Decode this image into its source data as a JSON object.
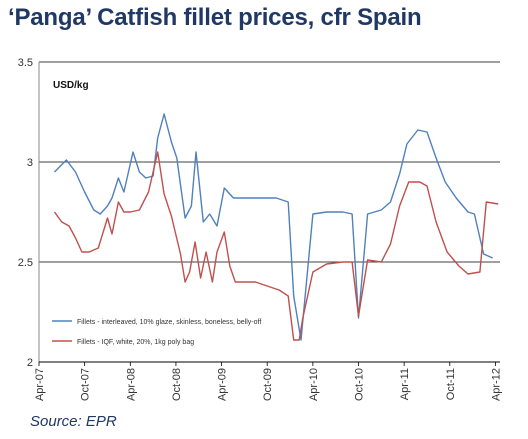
{
  "header": {
    "title": "‘Panga’ Catfish fillet prices, cfr Spain"
  },
  "footer": {
    "source": "Source: EPR"
  },
  "chart_data": {
    "type": "line",
    "title": "‘Panga’ Catfish fillet prices, cfr Spain",
    "ylabel": "USD/kg",
    "xlabel": "",
    "ylim": [
      2,
      3.5
    ],
    "xlim": [
      2007.25,
      2012.3
    ],
    "yticks": [
      2,
      2.5,
      3,
      3.5
    ],
    "ytick_labels": [
      "2",
      "2.5",
      "3",
      "3.5"
    ],
    "xticks": [
      2007.25,
      2007.75,
      2008.25,
      2008.75,
      2009.25,
      2009.75,
      2010.25,
      2010.75,
      2011.25,
      2011.75,
      2012.25
    ],
    "xtick_labels": [
      "Apr-07",
      "Oct-07",
      "Apr-08",
      "Oct-08",
      "Apr-09",
      "Oct-09",
      "Apr-10",
      "Oct-10",
      "Apr-11",
      "Oct-11",
      "Apr-12"
    ],
    "grid": "horizontal",
    "legend_position": "lower-left",
    "series": [
      {
        "name": "Fillets - interleaved, 10% glaze, skinless, boneless, belly-off",
        "color": "#4f81bd",
        "x": [
          2007.42,
          2007.55,
          2007.65,
          2007.75,
          2007.85,
          2007.92,
          2008.0,
          2008.05,
          2008.12,
          2008.18,
          2008.28,
          2008.35,
          2008.42,
          2008.5,
          2008.55,
          2008.62,
          2008.7,
          2008.76,
          2008.85,
          2008.92,
          2008.97,
          2009.05,
          2009.12,
          2009.2,
          2009.28,
          2009.38,
          2009.5,
          2009.62,
          2009.75,
          2009.85,
          2009.98,
          2010.04,
          2010.12,
          2010.25,
          2010.4,
          2010.58,
          2010.68,
          2010.75,
          2010.85,
          2011.0,
          2011.1,
          2011.2,
          2011.28,
          2011.4,
          2011.5,
          2011.6,
          2011.7,
          2011.82,
          2011.95,
          2012.02,
          2012.12,
          2012.22
        ],
        "values": [
          2.95,
          3.01,
          2.95,
          2.85,
          2.76,
          2.74,
          2.78,
          2.82,
          2.92,
          2.85,
          3.05,
          2.95,
          2.92,
          2.93,
          3.12,
          3.24,
          3.1,
          3.02,
          2.72,
          2.78,
          3.05,
          2.7,
          2.74,
          2.68,
          2.87,
          2.82,
          2.82,
          2.82,
          2.82,
          2.82,
          2.8,
          2.33,
          2.11,
          2.74,
          2.75,
          2.75,
          2.74,
          2.22,
          2.74,
          2.76,
          2.8,
          2.94,
          3.09,
          3.16,
          3.15,
          3.02,
          2.9,
          2.82,
          2.75,
          2.74,
          2.54,
          2.52
        ]
      },
      {
        "name": "Fillets - IQF, white, 20%, 1kg poly bag",
        "color": "#c0504d",
        "x": [
          2007.42,
          2007.5,
          2007.58,
          2007.65,
          2007.72,
          2007.8,
          2007.9,
          2008.0,
          2008.05,
          2008.12,
          2008.18,
          2008.25,
          2008.35,
          2008.45,
          2008.55,
          2008.62,
          2008.7,
          2008.8,
          2008.85,
          2008.9,
          2008.96,
          2009.02,
          2009.08,
          2009.15,
          2009.2,
          2009.28,
          2009.34,
          2009.4,
          2009.5,
          2009.62,
          2009.75,
          2009.88,
          2009.98,
          2010.04,
          2010.1,
          2010.14,
          2010.25,
          2010.4,
          2010.58,
          2010.68,
          2010.75,
          2010.85,
          2011.0,
          2011.1,
          2011.2,
          2011.3,
          2011.42,
          2011.5,
          2011.6,
          2011.72,
          2011.85,
          2011.95,
          2012.08,
          2012.15,
          2012.28
        ],
        "values": [
          2.75,
          2.7,
          2.68,
          2.62,
          2.55,
          2.55,
          2.57,
          2.72,
          2.64,
          2.8,
          2.75,
          2.75,
          2.76,
          2.85,
          3.05,
          2.84,
          2.73,
          2.54,
          2.4,
          2.45,
          2.6,
          2.42,
          2.55,
          2.4,
          2.55,
          2.65,
          2.48,
          2.4,
          2.4,
          2.4,
          2.38,
          2.36,
          2.33,
          2.11,
          2.11,
          2.22,
          2.45,
          2.49,
          2.5,
          2.5,
          2.23,
          2.51,
          2.5,
          2.59,
          2.78,
          2.9,
          2.9,
          2.88,
          2.7,
          2.55,
          2.48,
          2.44,
          2.45,
          2.8,
          2.79
        ]
      }
    ]
  }
}
